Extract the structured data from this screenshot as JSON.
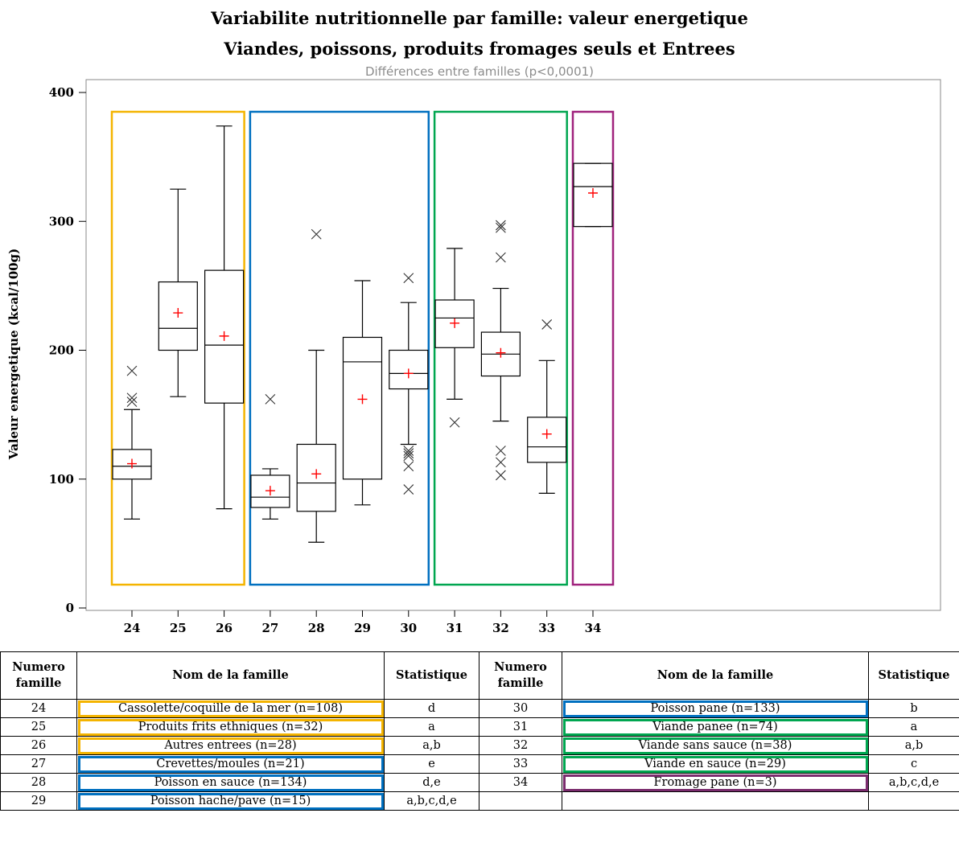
{
  "chart_data": {
    "type": "box",
    "title": "Variabilite nutritionnelle par famille: valeur energetique",
    "title_line2": "Viandes, poissons, produits fromages seuls et Entrees",
    "subtitle": "Différences entre familles (p<0,0001)",
    "ylabel": "Valeur energetique (kcal/100g)",
    "xlabel": "",
    "ylim": [
      0,
      400
    ],
    "yticks": [
      0,
      100,
      200,
      300,
      400
    ],
    "categories": [
      "24",
      "25",
      "26",
      "27",
      "28",
      "29",
      "30",
      "31",
      "32",
      "33",
      "34"
    ],
    "boxes": [
      {
        "category": "24",
        "whisker_low": 69,
        "q1": 100,
        "median": 110,
        "q3": 123,
        "whisker_high": 154,
        "mean": 112,
        "outliers": [
          160,
          163,
          184
        ]
      },
      {
        "category": "25",
        "whisker_low": 164,
        "q1": 200,
        "median": 217,
        "q3": 253,
        "whisker_high": 325,
        "mean": 229,
        "outliers": []
      },
      {
        "category": "26",
        "whisker_low": 77,
        "q1": 159,
        "median": 204,
        "q3": 262,
        "whisker_high": 374,
        "mean": 211,
        "outliers": []
      },
      {
        "category": "27",
        "whisker_low": 69,
        "q1": 78,
        "median": 86,
        "q3": 103,
        "whisker_high": 108,
        "mean": 91,
        "outliers": [
          162
        ]
      },
      {
        "category": "28",
        "whisker_low": 51,
        "q1": 75,
        "median": 97,
        "q3": 127,
        "whisker_high": 200,
        "mean": 104,
        "outliers": [
          290
        ]
      },
      {
        "category": "29",
        "whisker_low": 80,
        "q1": 100,
        "median": 191,
        "q3": 210,
        "whisker_high": 254,
        "mean": 162,
        "outliers": []
      },
      {
        "category": "30",
        "whisker_low": 127,
        "q1": 170,
        "median": 182,
        "q3": 200,
        "whisker_high": 237,
        "mean": 182,
        "outliers": [
          92,
          110,
          118,
          120,
          122,
          256
        ]
      },
      {
        "category": "31",
        "whisker_low": 162,
        "q1": 202,
        "median": 225,
        "q3": 239,
        "whisker_high": 279,
        "mean": 221,
        "outliers": [
          144
        ]
      },
      {
        "category": "32",
        "whisker_low": 145,
        "q1": 180,
        "median": 197,
        "q3": 214,
        "whisker_high": 248,
        "mean": 198,
        "outliers": [
          103,
          113,
          122,
          272,
          295,
          297
        ]
      },
      {
        "category": "33",
        "whisker_low": 89,
        "q1": 113,
        "median": 125,
        "q3": 148,
        "whisker_high": 192,
        "mean": 135,
        "outliers": [
          220
        ]
      },
      {
        "category": "34",
        "whisker_low": 296,
        "q1": 296,
        "median": 327,
        "q3": 345,
        "whisker_high": 345,
        "mean": 322,
        "outliers": []
      }
    ],
    "groups": [
      {
        "from": "24",
        "to": "26",
        "color": "#f4b400"
      },
      {
        "from": "27",
        "to": "30",
        "color": "#0070c0"
      },
      {
        "from": "31",
        "to": "33",
        "color": "#00a650"
      },
      {
        "from": "34",
        "to": "34",
        "color": "#a0227d"
      }
    ],
    "mean_color": "#ff0000",
    "box_color": "#000000"
  },
  "table": {
    "headers": {
      "numero": "Numero famille",
      "nom": "Nom de la famille",
      "statistique": "Statistique"
    },
    "left": [
      {
        "num": "24",
        "nom": "Cassolette/coquille de la mer (n=108)",
        "stat": "d",
        "box": "yellow"
      },
      {
        "num": "25",
        "nom": "Produits frits ethniques (n=32)",
        "stat": "a",
        "box": "yellow"
      },
      {
        "num": "26",
        "nom": "Autres entrees (n=28)",
        "stat": "a,b",
        "box": "yellow"
      },
      {
        "num": "27",
        "nom": "Crevettes/moules (n=21)",
        "stat": "e",
        "box": "blue"
      },
      {
        "num": "28",
        "nom": "Poisson en sauce (n=134)",
        "stat": "d,e",
        "box": "blue"
      },
      {
        "num": "29",
        "nom": "Poisson hache/pave (n=15)",
        "stat": "a,b,c,d,e",
        "box": "blue"
      }
    ],
    "right": [
      {
        "num": "30",
        "nom": "Poisson pane (n=133)",
        "stat": "b",
        "box": "blue"
      },
      {
        "num": "31",
        "nom": "Viande panee (n=74)",
        "stat": "a",
        "box": "green"
      },
      {
        "num": "32",
        "nom": "Viande sans sauce (n=38)",
        "stat": "a,b",
        "box": "green"
      },
      {
        "num": "33",
        "nom": "Viande en sauce (n=29)",
        "stat": "c",
        "box": "green"
      },
      {
        "num": "34",
        "nom": "Fromage pane (n=3)",
        "stat": "a,b,c,d,e",
        "box": "purple"
      },
      {
        "num": "",
        "nom": "",
        "stat": "",
        "box": ""
      }
    ]
  }
}
